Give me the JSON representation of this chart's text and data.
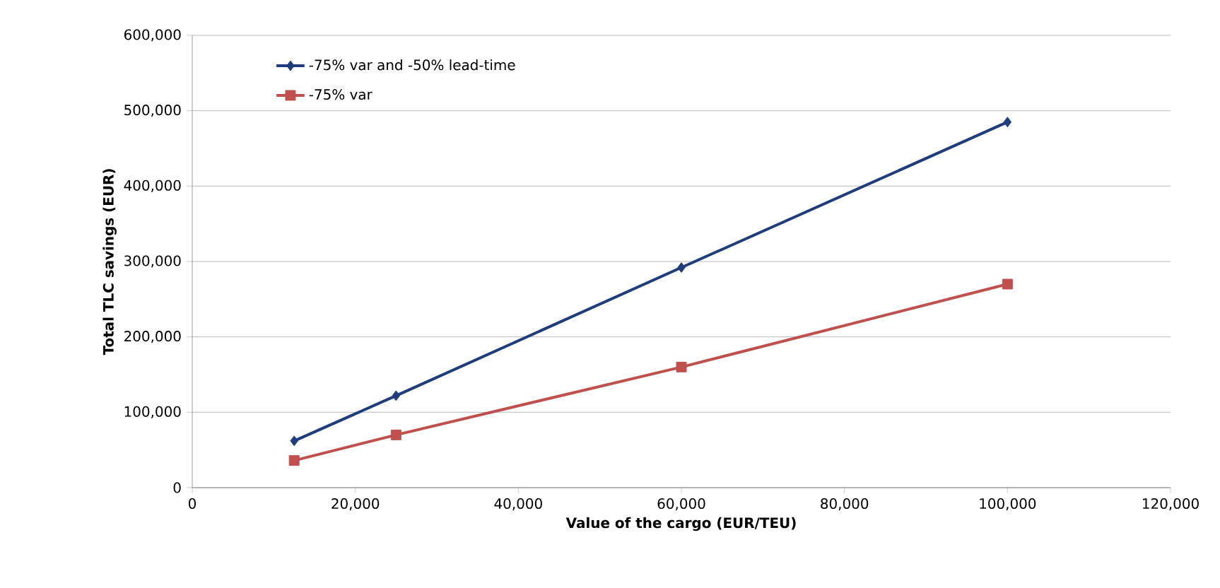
{
  "chart_data": {
    "type": "line",
    "xlabel": "Value of the cargo (EUR/TEU)",
    "ylabel": "Total TLC savings (EUR)",
    "series": [
      {
        "name": "-75% var and -50% lead-time",
        "color": "#1f3d7a",
        "marker": "diamond",
        "x": [
          12500,
          25000,
          60000,
          100000
        ],
        "values": [
          62000,
          122000,
          292000,
          485000
        ]
      },
      {
        "name": "-75% var",
        "color": "#c0504d",
        "marker": "square",
        "x": [
          12500,
          25000,
          60000,
          100000
        ],
        "values": [
          36000,
          70000,
          160000,
          270000
        ]
      }
    ],
    "xlim": [
      0,
      120000
    ],
    "ylim": [
      0,
      600000
    ],
    "xticks": [
      0,
      {
        "value": 20000,
        "label": "20,000"
      },
      {
        "value": 40000,
        "label": "40,000"
      },
      {
        "value": 60000,
        "label": "60,000"
      },
      {
        "value": 80000,
        "label": "80,000"
      },
      {
        "value": 100000,
        "label": "100,000"
      },
      {
        "value": 120000,
        "label": "120,000"
      }
    ],
    "yticks": [
      0,
      {
        "value": 100000,
        "label": "100,000"
      },
      {
        "value": 200000,
        "label": "200,000"
      },
      {
        "value": 300000,
        "label": "300,000"
      },
      {
        "value": 400000,
        "label": "400,000"
      },
      {
        "value": 500000,
        "label": "500,000"
      },
      {
        "value": 600000,
        "label": "600,000"
      }
    ],
    "grid": "y",
    "legend": "top left",
    "line_style": "solid"
  }
}
